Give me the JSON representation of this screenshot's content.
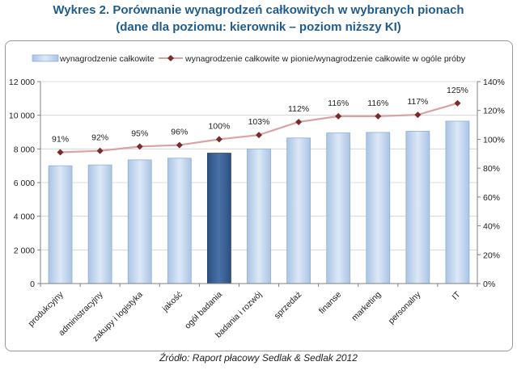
{
  "title_line1": "Wykres 2. Porównanie wynagrodzeń całkowitych w wybranych pionach",
  "title_line2": "(dane dla poziomu: kierownik – poziom niższy KI)",
  "source": "Źródło: Raport płacowy Sedlak & Sedlak 2012",
  "colors": {
    "bar": "#c5d8ef",
    "bar_edge": "#8fb0d6",
    "bar_highlight": "#3b6195",
    "line": "#d9a3a3",
    "marker": "#7a2a2a",
    "grid": "#d0d0d0"
  },
  "chart_data": {
    "type": "bar+line",
    "categories": [
      "produkcyjny",
      "administracyjny",
      "zakupy i logistyka",
      "jakość",
      "ogół badania",
      "badania i rozwój",
      "sprzedaż",
      "finanse",
      "marketing",
      "personalny",
      "IT"
    ],
    "highlight_category": "ogół badania",
    "series": [
      {
        "name": "wynagrodzenie całkowite",
        "type": "bar",
        "axis": "left",
        "values": [
          7000,
          7050,
          7350,
          7450,
          7750,
          8000,
          8650,
          8950,
          8980,
          9050,
          9650
        ]
      },
      {
        "name": "wynagrodzenie całkowite w pionie/wynagrodzenie całkowite w ogóle próby",
        "type": "line",
        "axis": "right",
        "values": [
          91,
          92,
          95,
          96,
          100,
          103,
          112,
          116,
          116,
          117,
          125
        ],
        "labels": [
          "91%",
          "92%",
          "95%",
          "96%",
          "100%",
          "103%",
          "112%",
          "116%",
          "116%",
          "117%",
          "125%"
        ]
      }
    ],
    "y_left": {
      "min": 0,
      "max": 12000,
      "ticks": [
        0,
        2000,
        4000,
        6000,
        8000,
        10000,
        12000
      ],
      "tick_labels": [
        "0",
        "2 000",
        "4 000",
        "6 000",
        "8 000",
        "10 000",
        "12 000"
      ]
    },
    "y_right": {
      "min": 0,
      "max": 140,
      "ticks": [
        0,
        20,
        40,
        60,
        80,
        100,
        120,
        140
      ],
      "tick_labels": [
        "0%",
        "20%",
        "40%",
        "60%",
        "80%",
        "100%",
        "120%",
        "140%"
      ]
    },
    "grid": true,
    "legend_position": "top"
  }
}
